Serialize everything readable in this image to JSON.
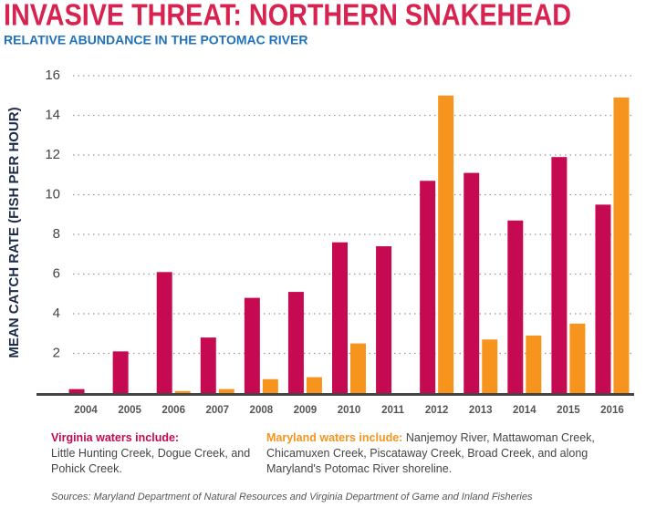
{
  "chart_data": {
    "type": "bar",
    "title": "INVASIVE THREAT: NORTHERN SNAKEHEAD",
    "subtitle": "RELATIVE ABUNDANCE IN THE POTOMAC RIVER",
    "y_label": "MEAN CATCH RATE (FISH PER HOUR)",
    "categories": [
      "2004",
      "2005",
      "2006",
      "2007",
      "2008",
      "2009",
      "2010",
      "2011",
      "2012",
      "2013",
      "2014",
      "2015",
      "2016"
    ],
    "series": [
      {
        "name": "Virginia waters include:",
        "description": "Little Hunting Creek, Dogue Creek, and Pohick Creek.",
        "color": "#c60a52",
        "values": [
          0.2,
          2.1,
          6.1,
          2.8,
          4.8,
          5.1,
          7.6,
          7.4,
          10.7,
          11.1,
          8.7,
          11.9,
          9.5
        ]
      },
      {
        "name": "Maryland waters include:",
        "description": "Nanjemoy River, Mattawoman Creek, Chicamuxen Creek, Piscataway Creek, Broad Creek, and along Maryland's Potomac River shoreline.",
        "color": "#f7941d",
        "values": [
          null,
          null,
          0.1,
          0.2,
          0.7,
          0.8,
          2.5,
          null,
          15.0,
          2.7,
          2.9,
          3.5,
          14.9
        ]
      }
    ],
    "ylim": [
      0,
      16
    ],
    "yticks": [
      2,
      4,
      6,
      8,
      10,
      12,
      14,
      16
    ],
    "grid": true,
    "source": "Sources: Maryland Department of Natural Resources and Virginia Department of Game and Inland Fisheries"
  }
}
